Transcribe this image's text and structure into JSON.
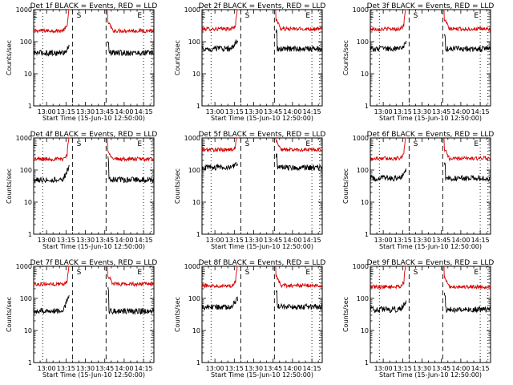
{
  "chart_data": [
    {
      "type": "line",
      "title": "Det 1f BLACK = Events, RED = LLD",
      "xlabel": "Start Time (15-Jun-10 12:50:00)",
      "ylabel": "Counts/sec",
      "y_scale": "log",
      "ylim": [
        1,
        1000
      ],
      "xticklabels": [
        "13:00",
        "13:15",
        "13:30",
        "13:45",
        "14:00",
        "14:15"
      ],
      "yticklabels": [
        "1",
        "10",
        "100",
        "1000"
      ],
      "markers": [
        "E",
        "S",
        "E"
      ],
      "series": [
        {
          "color": "#d40000",
          "baseline": 220,
          "rise": 380
        },
        {
          "color": "#000000",
          "baseline": 45,
          "rise": 70
        }
      ]
    },
    {
      "type": "line",
      "title": "Det 2f BLACK = Events, RED = LLD",
      "xlabel": "Start Time (15-Jun-10 12:50:00)",
      "ylabel": "Counts/sec",
      "y_scale": "log",
      "ylim": [
        1,
        1000
      ],
      "xticklabels": [
        "13:00",
        "13:15",
        "13:30",
        "13:45",
        "14:00",
        "14:15"
      ],
      "yticklabels": [
        "1",
        "10",
        "100",
        "1000"
      ],
      "markers": [
        "E",
        "S",
        "E"
      ],
      "series": [
        {
          "color": "#d40000",
          "baseline": 250,
          "rise": 380
        },
        {
          "color": "#000000",
          "baseline": 60,
          "rise": 120
        }
      ]
    },
    {
      "type": "line",
      "title": "Det 3f BLACK = Events, RED = LLD",
      "xlabel": "Start Time (15-Jun-10 12:50:00)",
      "ylabel": "Counts/sec",
      "y_scale": "log",
      "ylim": [
        1,
        1000
      ],
      "xticklabels": [
        "13:00",
        "13:15",
        "13:30",
        "13:45",
        "14:00",
        "14:15"
      ],
      "yticklabels": [
        "1",
        "10",
        "100",
        "1000"
      ],
      "markers": [
        "E",
        "S",
        "E"
      ],
      "series": [
        {
          "color": "#d40000",
          "baseline": 250,
          "rise": 380
        },
        {
          "color": "#000000",
          "baseline": 60,
          "rise": 90
        }
      ]
    },
    {
      "type": "line",
      "title": "Det 4f BLACK = Events, RED = LLD",
      "xlabel": "Start Time (15-Jun-10 12:50:00)",
      "ylabel": "Counts/sec",
      "y_scale": "log",
      "ylim": [
        1,
        1000
      ],
      "xticklabels": [
        "13:00",
        "13:15",
        "13:30",
        "13:45",
        "14:00",
        "14:15"
      ],
      "yticklabels": [
        "1",
        "10",
        "100",
        "1000"
      ],
      "markers": [
        "E",
        "S",
        "E"
      ],
      "series": [
        {
          "color": "#d40000",
          "baseline": 220,
          "rise": 380
        },
        {
          "color": "#000000",
          "baseline": 50,
          "rise": 140
        }
      ]
    },
    {
      "type": "line",
      "title": "Det 5f BLACK = Events, RED = LLD",
      "xlabel": "Start Time (15-Jun-10 12:50:00)",
      "ylabel": "Counts/sec",
      "y_scale": "log",
      "ylim": [
        1,
        1000
      ],
      "xticklabels": [
        "13:00",
        "13:15",
        "13:30",
        "13:45",
        "14:00",
        "14:15"
      ],
      "yticklabels": [
        "1",
        "10",
        "100",
        "1000"
      ],
      "markers": [
        "E",
        "S",
        "E"
      ],
      "series": [
        {
          "color": "#d40000",
          "baseline": 430,
          "rise": 600
        },
        {
          "color": "#000000",
          "baseline": 120,
          "rise": 180
        }
      ]
    },
    {
      "type": "line",
      "title": "Det 6f BLACK = Events, RED = LLD",
      "xlabel": "Start Time (15-Jun-10 12:50:00)",
      "ylabel": "Counts/sec",
      "y_scale": "log",
      "ylim": [
        1,
        1000
      ],
      "xticklabels": [
        "13:00",
        "13:15",
        "13:30",
        "13:45",
        "14:00",
        "14:15"
      ],
      "yticklabels": [
        "1",
        "10",
        "100",
        "1000"
      ],
      "markers": [
        "E",
        "S",
        "E"
      ],
      "series": [
        {
          "color": "#d40000",
          "baseline": 230,
          "rise": 380
        },
        {
          "color": "#000000",
          "baseline": 55,
          "rise": 100
        }
      ]
    },
    {
      "type": "line",
      "title": "Det 7f BLACK = Events, RED = LLD",
      "xlabel": "Start Time (15-Jun-10 12:50:00)",
      "ylabel": "Counts/sec",
      "y_scale": "log",
      "ylim": [
        1,
        1000
      ],
      "xticklabels": [
        "13:00",
        "13:15",
        "13:30",
        "13:45",
        "14:00",
        "14:15"
      ],
      "yticklabels": [
        "1",
        "10",
        "100",
        "1000"
      ],
      "markers": [
        "E",
        "S",
        "E"
      ],
      "series": [
        {
          "color": "#d40000",
          "baseline": 280,
          "rise": 380
        },
        {
          "color": "#000000",
          "baseline": 40,
          "rise": 130
        }
      ]
    },
    {
      "type": "line",
      "title": "Det 8f BLACK = Events, RED = LLD",
      "xlabel": "Start Time (15-Jun-10 12:50:00)",
      "ylabel": "Counts/sec",
      "y_scale": "log",
      "ylim": [
        1,
        1000
      ],
      "xticklabels": [
        "13:00",
        "13:15",
        "13:30",
        "13:45",
        "14:00",
        "14:15"
      ],
      "yticklabels": [
        "1",
        "10",
        "100",
        "1000"
      ],
      "markers": [
        "E",
        "S",
        "E"
      ],
      "series": [
        {
          "color": "#d40000",
          "baseline": 250,
          "rise": 380
        },
        {
          "color": "#000000",
          "baseline": 55,
          "rise": 100
        }
      ]
    },
    {
      "type": "line",
      "title": "Det 9f BLACK = Events, RED = LLD",
      "xlabel": "Start Time (15-Jun-10 12:50:00)",
      "ylabel": "Counts/sec",
      "y_scale": "log",
      "ylim": [
        1,
        1000
      ],
      "xticklabels": [
        "13:00",
        "13:15",
        "13:30",
        "13:45",
        "14:00",
        "14:15"
      ],
      "yticklabels": [
        "1",
        "10",
        "100",
        "1000"
      ],
      "markers": [
        "E",
        "S",
        "E"
      ],
      "series": [
        {
          "color": "#d40000",
          "baseline": 230,
          "rise": 380
        },
        {
          "color": "#000000",
          "baseline": 45,
          "rise": 80
        }
      ]
    }
  ]
}
